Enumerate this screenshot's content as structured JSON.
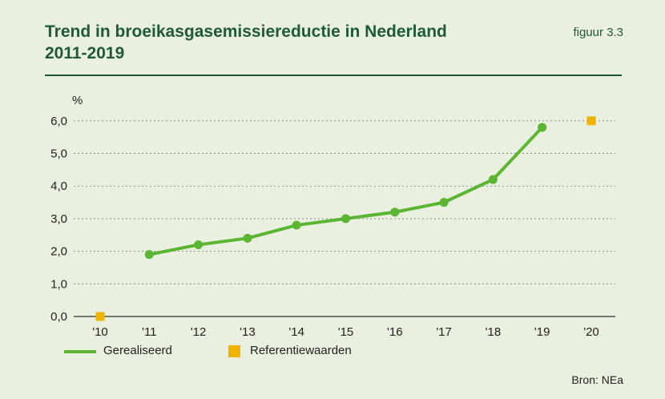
{
  "header": {
    "title_line1": "Trend in broeikasgasemissiereductie in Nederland",
    "title_line2": "2011-2019",
    "figure_label": "figuur 3.3"
  },
  "legend": {
    "series_label": "Gerealiseerd",
    "reference_label": "Referentiewaarden"
  },
  "footer": {
    "source": "Bron: NEa"
  },
  "colors": {
    "background": "#e9f0df",
    "title": "#1f5a36",
    "series": "#5bb533",
    "reference": "#f0b400",
    "grid": "#8a8a8a"
  },
  "chart_data": {
    "type": "line",
    "ylabel": "%",
    "xlabel": "",
    "ylim": [
      0,
      6
    ],
    "yticks": [
      0,
      1,
      2,
      3,
      4,
      5,
      6
    ],
    "ytick_labels": [
      "0,0",
      "1,0",
      "2,0",
      "3,0",
      "4,0",
      "5,0",
      "6,0"
    ],
    "categories": [
      "'10",
      "'11",
      "'12",
      "'13",
      "'14",
      "'15",
      "'16",
      "'17",
      "'18",
      "'19",
      "'20"
    ],
    "grid": true,
    "legend_position": "bottom-left",
    "series": [
      {
        "name": "Gerealiseerd",
        "style": "line-with-markers",
        "x": [
          "'11",
          "'12",
          "'13",
          "'14",
          "'15",
          "'16",
          "'17",
          "'18",
          "'19"
        ],
        "values": [
          1.9,
          2.2,
          2.4,
          2.8,
          3.0,
          3.2,
          3.5,
          4.2,
          5.8
        ]
      },
      {
        "name": "Referentiewaarden",
        "style": "square-markers",
        "x": [
          "'10",
          "'20"
        ],
        "values": [
          0.0,
          6.0
        ]
      }
    ]
  }
}
